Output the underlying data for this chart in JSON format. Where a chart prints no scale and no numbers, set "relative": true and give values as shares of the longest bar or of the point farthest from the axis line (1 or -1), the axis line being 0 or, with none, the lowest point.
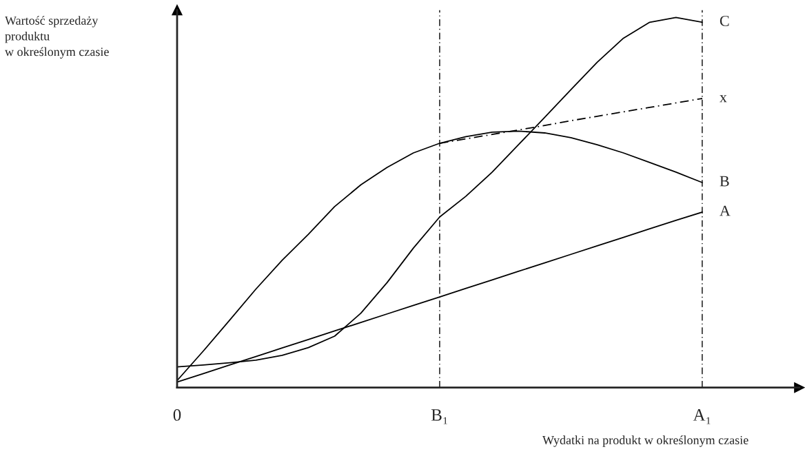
{
  "chart_data": {
    "type": "line",
    "relative": true,
    "ylabel": "Wartość sprzedaży\nproduktu\nw określonym czasie",
    "xlabel": "Wydatki na produkt w określonym czasie",
    "categories": [
      "0",
      null,
      null,
      null,
      null,
      null,
      null,
      null,
      null,
      null,
      "B₁",
      null,
      null,
      null,
      null,
      null,
      null,
      null,
      null,
      null,
      "A₁"
    ],
    "series": [
      {
        "name": "A",
        "color": "#000000",
        "values": [
          0.015,
          0.038,
          0.061,
          0.084,
          0.107,
          0.13,
          0.153,
          0.176,
          0.199,
          0.222,
          0.245,
          0.268,
          0.291,
          0.314,
          0.337,
          0.36,
          0.383,
          0.406,
          0.429,
          0.452,
          0.474
        ]
      },
      {
        "name": "B",
        "color": "#000000",
        "values": [
          0.019,
          0.099,
          0.182,
          0.266,
          0.344,
          0.414,
          0.489,
          0.548,
          0.595,
          0.634,
          0.66,
          0.678,
          0.69,
          0.693,
          0.688,
          0.675,
          0.656,
          0.634,
          0.608,
          0.582,
          0.554
        ]
      },
      {
        "name": "C",
        "color": "#000000",
        "values": [
          0.056,
          0.061,
          0.067,
          0.074,
          0.087,
          0.108,
          0.139,
          0.201,
          0.284,
          0.377,
          0.461,
          0.517,
          0.582,
          0.656,
          0.73,
          0.805,
          0.879,
          0.944,
          0.987,
          1.0,
          0.987
        ]
      },
      {
        "name": "x",
        "color": "#000000",
        "line_style": "dashed",
        "values": [
          null,
          null,
          null,
          null,
          null,
          null,
          null,
          null,
          null,
          null,
          0.66,
          0.672,
          0.684,
          0.696,
          0.708,
          0.721,
          0.733,
          0.745,
          0.757,
          0.769,
          0.781
        ]
      }
    ],
    "ref_lines": [
      {
        "axis": "x",
        "value": "B₁",
        "line_style": "dashed",
        "color": "#000000"
      },
      {
        "axis": "x",
        "value": "A₁",
        "line_style": "dashed",
        "color": "#000000"
      }
    ],
    "grid": false,
    "legend": false,
    "marker": "none",
    "line_style": "solid"
  }
}
